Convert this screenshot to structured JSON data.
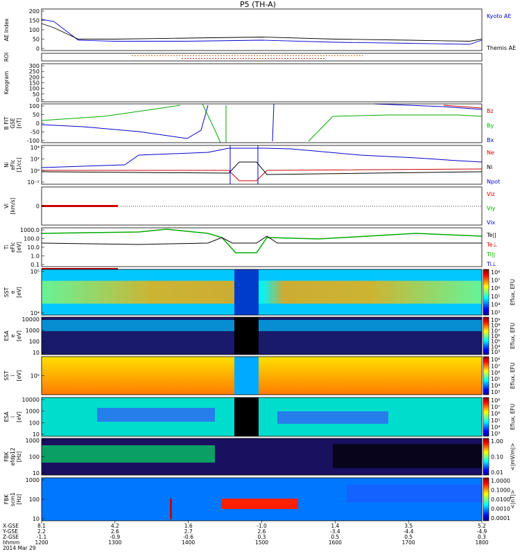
{
  "title": "P5 (TH-A)",
  "panels": [
    {
      "id": "ae",
      "ylabel": [
        "AE Index"
      ],
      "yticks": [
        "200",
        "150",
        "100",
        "50",
        "0"
      ],
      "legend": [
        {
          "text": "Kyoto AE",
          "color": "#0000cc"
        },
        {
          "text": "Themis AE",
          "color": "#000000"
        }
      ]
    },
    {
      "id": "roi",
      "ylabel": [
        "ROI"
      ],
      "yticks": [],
      "legend": []
    },
    {
      "id": "keogram",
      "ylabel": [
        "Keogram"
      ],
      "yticks": [
        "300",
        "250",
        "200",
        "150",
        "100",
        "50",
        "0"
      ],
      "legend": []
    },
    {
      "id": "bfit",
      "ylabel": [
        "B FIT",
        "GSE",
        "[nT]"
      ],
      "yticks": [
        "100",
        "50",
        "0",
        "-50",
        "-100"
      ],
      "legend": [
        {
          "text": "Bz",
          "color": "#cc0000"
        },
        {
          "text": "By",
          "color": "#00aa00"
        },
        {
          "text": "Bx",
          "color": "#0000cc"
        }
      ]
    },
    {
      "id": "density",
      "ylabel": [
        "Ni",
        "eFlc",
        "[1/cc]"
      ],
      "yticks": [
        "10⁴",
        "10²",
        "10⁰",
        "10⁻²"
      ],
      "legend": [
        {
          "text": "Ne",
          "color": "#cc0000"
        },
        {
          "text": "Ni",
          "color": "#000000"
        },
        {
          "text": "Npot",
          "color": "#0000cc"
        }
      ]
    },
    {
      "id": "velocity",
      "ylabel": [
        "Vi",
        "[km/s]"
      ],
      "yticks": [
        "0"
      ],
      "legend": [
        {
          "text": "Viz",
          "color": "#cc0000"
        },
        {
          "text": "Viy",
          "color": "#00aa00"
        },
        {
          "text": "Vix",
          "color": "#0000cc"
        }
      ]
    },
    {
      "id": "temperature",
      "ylabel": [
        "Ti",
        "eFlc",
        "[eV]"
      ],
      "yticks": [
        "1000.0",
        "100.0",
        "10.0",
        "1.0",
        "0.1"
      ],
      "legend": [
        {
          "text": "Te||",
          "color": "#000000"
        },
        {
          "text": "Te⊥",
          "color": "#cc0000"
        },
        {
          "text": "Ti||",
          "color": "#00aa00"
        },
        {
          "text": "Ti⊥",
          "color": "#0000cc"
        }
      ]
    },
    {
      "id": "sst_e",
      "ylabel": [
        "SST",
        "e",
        "[eV]"
      ],
      "yticks": [
        "10⁵",
        "10⁴"
      ],
      "colorbar": {
        "ticks": [
          "10⁸",
          "10⁷",
          "10⁶",
          "10⁵",
          "10⁴",
          "10³"
        ],
        "label": "Eflux, EFU"
      }
    },
    {
      "id": "esa_e",
      "ylabel": [
        "ESA",
        "e",
        "[eV]"
      ],
      "yticks": [
        "10000",
        "1000",
        "100",
        "10"
      ],
      "colorbar": {
        "ticks": [
          "10⁹",
          "10⁸",
          "10⁷",
          "10⁶",
          "10⁵",
          "10⁴",
          "10³"
        ],
        "label": "Eflux, EFU"
      }
    },
    {
      "id": "sst_i",
      "ylabel": [
        "SST",
        "i",
        "[eV]"
      ],
      "yticks": [
        "10⁵"
      ],
      "colorbar": {
        "ticks": [
          "10⁸",
          "10⁷",
          "10⁶",
          "10⁵",
          "10⁴",
          "10³"
        ],
        "label": "Eflux, EFU"
      }
    },
    {
      "id": "esa_i",
      "ylabel": [
        "ESA",
        "i",
        "[eV]"
      ],
      "yticks": [
        "10000",
        "1000",
        "100",
        "10"
      ],
      "colorbar": {
        "ticks": [
          "10⁸",
          "10⁷",
          "10⁶",
          "10⁵",
          "10⁴",
          "10³"
        ],
        "label": "Eflux, EFU"
      }
    },
    {
      "id": "fbk_e",
      "ylabel": [
        "FBK",
        "efdp12",
        "[Hz]"
      ],
      "yticks": [
        "1000",
        "100",
        "10"
      ],
      "colorbar": {
        "ticks": [
          "1.00",
          "0.10",
          "0.01"
        ],
        "label": "<|mV/m|>"
      }
    },
    {
      "id": "fbk_b",
      "ylabel": [
        "FBK",
        "scm1",
        "[Hz]"
      ],
      "yticks": [
        "1000",
        "100",
        "10"
      ],
      "colorbar": {
        "ticks": [
          "1.0000",
          "0.1000",
          "0.0100",
          "0.0010",
          "0.0001"
        ],
        "label": "<|nT|>"
      }
    }
  ],
  "xaxis": {
    "row_labels": [
      "X-GSE",
      "Y-GSE",
      "Z-GSE",
      "hhmm",
      "2014 Mar 29"
    ],
    "ticks": [
      {
        "v": [
          "8.1",
          "2.2",
          "-1.1",
          "1200"
        ]
      },
      {
        "v": [
          "4.2",
          "2.6",
          "-0.9",
          "1300"
        ]
      },
      {
        "v": [
          "1.6",
          "2.7",
          "-0.6",
          "1400"
        ]
      },
      {
        "v": [
          "-1.0",
          "2.6",
          "0.3",
          "1500"
        ]
      },
      {
        "v": [
          "1.4",
          "-3.4",
          "0.5",
          "1600"
        ]
      },
      {
        "v": [
          "3.5",
          "-4.4",
          "0.5",
          "1700"
        ]
      },
      {
        "v": [
          "5.2",
          "-4.9",
          "0.3",
          "1800"
        ]
      }
    ]
  },
  "chart_data": {
    "type": "line",
    "title": "P5 (TH-A)",
    "x_units": "hhmm",
    "x_range": [
      "1200",
      "1800"
    ],
    "series": [
      {
        "name": "Kyoto AE",
        "color": "#0000cc",
        "x": [
          "1200",
          "1210",
          "1230",
          "1300",
          "1400",
          "1500",
          "1600",
          "1700",
          "1750",
          "1800"
        ],
        "y": [
          150,
          140,
          50,
          45,
          45,
          50,
          40,
          35,
          30,
          50
        ]
      },
      {
        "name": "Themis AE",
        "color": "#000000",
        "x": [
          "1200",
          "1210",
          "1230",
          "1300",
          "1400",
          "1500",
          "1600",
          "1700",
          "1750",
          "1800"
        ],
        "y": [
          130,
          110,
          55,
          55,
          60,
          65,
          55,
          50,
          45,
          55
        ]
      }
    ],
    "colors": {
      "jet_low": "#00008f",
      "jet_high": "#800000",
      "red": "#cc0000",
      "green": "#00aa00",
      "blue": "#0000cc"
    }
  }
}
